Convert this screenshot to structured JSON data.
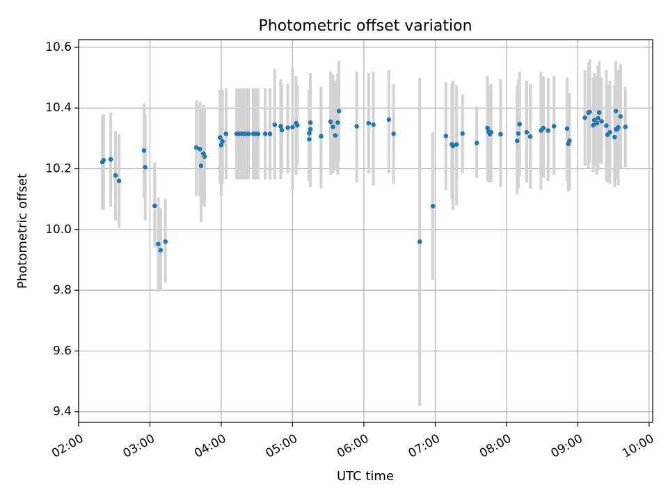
{
  "chart_data": {
    "type": "scatter",
    "title": "Photometric offset variation",
    "xlabel": "UTC time",
    "ylabel": "Photometric offset",
    "xlim": [
      "02:00",
      "10:03"
    ],
    "ylim": [
      9.365,
      10.625
    ],
    "x_ticks": [
      "02:00",
      "03:00",
      "04:00",
      "05:00",
      "06:00",
      "07:00",
      "08:00",
      "09:00",
      "10:00"
    ],
    "y_ticks": [
      "9.4",
      "9.6",
      "9.8",
      "10.0",
      "10.2",
      "10.4",
      "10.6"
    ],
    "x_ticks_rotated": true,
    "grid": true,
    "legend": "none",
    "colors": {
      "points": "#1f77b4",
      "error_bars": "#d3d3d3",
      "grid": "#b0b0b0"
    },
    "series": [
      {
        "x": [
          "02:20",
          "02:21",
          "02:27",
          "02:31",
          "02:34",
          "02:55",
          "02:56",
          "03:04",
          "03:07",
          "03:09",
          "03:13",
          "03:39",
          "03:42",
          "03:43",
          "03:45",
          "03:46",
          "03:59",
          "04:00",
          "04:01",
          "04:04",
          "04:13",
          "04:15",
          "04:17",
          "04:19",
          "04:21",
          "04:23",
          "04:27",
          "04:29",
          "04:31",
          "04:37",
          "04:41",
          "04:45",
          "04:50",
          "04:51",
          "04:56",
          "05:00",
          "05:03",
          "05:04",
          "05:14",
          "05:14",
          "05:15",
          "05:15",
          "05:24",
          "05:32",
          "05:34",
          "05:36",
          "05:38",
          "05:39",
          "05:54",
          "06:04",
          "06:08",
          "06:21",
          "06:25",
          "06:47",
          "06:58",
          "07:09",
          "07:14",
          "07:15",
          "07:18",
          "07:23",
          "07:35",
          "07:44",
          "07:45",
          "07:46",
          "07:47",
          "07:55",
          "08:09",
          "08:10",
          "08:11",
          "08:17",
          "08:20",
          "08:29",
          "08:31",
          "08:35",
          "08:40",
          "08:51",
          "08:52",
          "08:53",
          "09:06",
          "09:09",
          "09:10",
          "09:13",
          "09:14",
          "09:16",
          "09:17",
          "09:18",
          "09:20",
          "09:24",
          "09:25",
          "09:27",
          "09:31",
          "09:32",
          "09:32",
          "09:33",
          "09:34",
          "09:36",
          "09:40"
        ],
        "y": [
          10.222,
          10.228,
          10.231,
          10.178,
          10.16,
          10.26,
          10.205,
          10.078,
          9.952,
          9.932,
          9.96,
          10.27,
          10.265,
          10.21,
          10.25,
          10.24,
          10.303,
          10.278,
          10.29,
          10.315,
          10.315,
          10.315,
          10.315,
          10.315,
          10.315,
          10.315,
          10.315,
          10.315,
          10.315,
          10.315,
          10.315,
          10.345,
          10.34,
          10.327,
          10.335,
          10.337,
          10.35,
          10.343,
          10.297,
          10.317,
          10.33,
          10.352,
          10.307,
          10.355,
          10.338,
          10.31,
          10.352,
          10.39,
          10.34,
          10.35,
          10.345,
          10.362,
          10.315,
          9.96,
          10.077,
          10.308,
          10.28,
          10.275,
          10.28,
          10.316,
          10.285,
          10.334,
          10.322,
          10.314,
          10.32,
          10.314,
          10.292,
          10.316,
          10.347,
          10.32,
          10.306,
          10.326,
          10.334,
          10.326,
          10.34,
          10.332,
          10.282,
          10.292,
          10.368,
          10.385,
          10.387,
          10.343,
          10.36,
          10.35,
          10.366,
          10.385,
          10.356,
          10.342,
          10.312,
          10.32,
          10.304,
          10.33,
          10.39,
          10.33,
          10.336,
          10.372,
          10.338
        ],
        "err_low": [
          10.065,
          10.065,
          10.075,
          10.03,
          10.005,
          10.105,
          10.03,
          9.94,
          9.795,
          9.8,
          9.825,
          10.11,
          10.11,
          10.025,
          10.08,
          10.075,
          10.15,
          10.11,
          10.15,
          10.165,
          10.165,
          10.165,
          10.165,
          10.165,
          10.165,
          10.165,
          10.165,
          10.165,
          10.165,
          10.165,
          10.165,
          10.165,
          10.165,
          10.185,
          10.185,
          10.13,
          10.18,
          10.21,
          10.16,
          10.175,
          10.185,
          10.14,
          10.135,
          10.18,
          10.185,
          10.195,
          10.18,
          10.225,
          10.155,
          10.185,
          10.145,
          10.185,
          10.15,
          9.42,
          9.835,
          10.13,
          10.1,
          10.065,
          10.08,
          10.185,
          10.17,
          10.16,
          10.155,
          10.16,
          10.155,
          10.14,
          10.115,
          10.135,
          10.175,
          10.155,
          10.135,
          10.13,
          10.17,
          10.16,
          10.18,
          10.16,
          10.125,
          10.13,
          10.21,
          10.2,
          10.22,
          10.19,
          10.21,
          10.18,
          10.195,
          10.22,
          10.215,
          10.16,
          10.155,
          10.15,
          10.14,
          10.175,
          10.225,
          10.165,
          10.145,
          10.2,
          10.205
        ],
        "err_high": [
          10.375,
          10.38,
          10.385,
          10.325,
          10.315,
          10.415,
          10.38,
          10.22,
          10.105,
          10.07,
          10.1,
          10.425,
          10.42,
          10.395,
          10.41,
          10.395,
          10.46,
          10.46,
          10.46,
          10.465,
          10.465,
          10.465,
          10.465,
          10.465,
          10.465,
          10.465,
          10.465,
          10.465,
          10.465,
          10.465,
          10.465,
          10.53,
          10.495,
          10.475,
          10.48,
          10.535,
          10.505,
          10.475,
          10.44,
          10.46,
          10.475,
          10.515,
          10.47,
          10.52,
          10.51,
          10.49,
          10.515,
          10.555,
          10.52,
          10.515,
          10.52,
          10.525,
          10.48,
          10.5,
          10.32,
          10.485,
          10.48,
          10.49,
          10.475,
          10.445,
          10.405,
          10.505,
          10.475,
          10.465,
          10.48,
          10.495,
          10.475,
          10.495,
          10.52,
          10.49,
          10.48,
          10.52,
          10.505,
          10.5,
          10.505,
          10.5,
          10.445,
          10.45,
          10.525,
          10.55,
          10.56,
          10.5,
          10.515,
          10.505,
          10.54,
          10.555,
          10.5,
          10.525,
          10.475,
          10.49,
          10.475,
          10.485,
          10.555,
          10.49,
          10.525,
          10.545,
          10.47
        ]
      }
    ]
  }
}
